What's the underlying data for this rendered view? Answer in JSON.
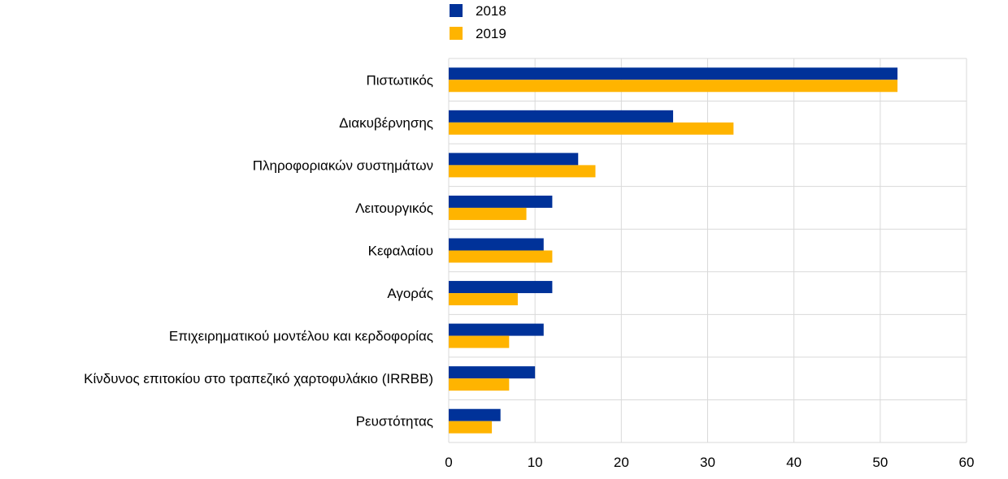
{
  "chart_data": {
    "type": "bar",
    "orientation": "horizontal",
    "title": "",
    "xlabel": "",
    "ylabel": "",
    "categories": [
      "Πιστωτικός",
      "Διακυβέρνησης",
      "Πληροφοριακών συστημάτων",
      "Λειτουργικός",
      "Κεφαλαίου",
      "Αγοράς",
      "Επιχειρηματικού μοντέλου και κερδοφορίας",
      "Κίνδυνος επιτοκίου στο τραπεζικό χαρτοφυλάκιο (IRRBB)",
      "Ρευστότητας"
    ],
    "series": [
      {
        "name": "2018",
        "color": "#003299",
        "values": [
          52,
          26,
          15,
          12,
          11,
          12,
          11,
          10,
          6
        ]
      },
      {
        "name": "2019",
        "color": "#FFB400",
        "values": [
          52,
          33,
          17,
          9,
          12,
          8,
          7,
          7,
          5
        ]
      }
    ],
    "xlim": [
      0,
      60
    ],
    "xticks": [
      "0",
      "10",
      "20",
      "30",
      "40",
      "50",
      "60"
    ],
    "grid": true,
    "legend_position": "top-left"
  }
}
